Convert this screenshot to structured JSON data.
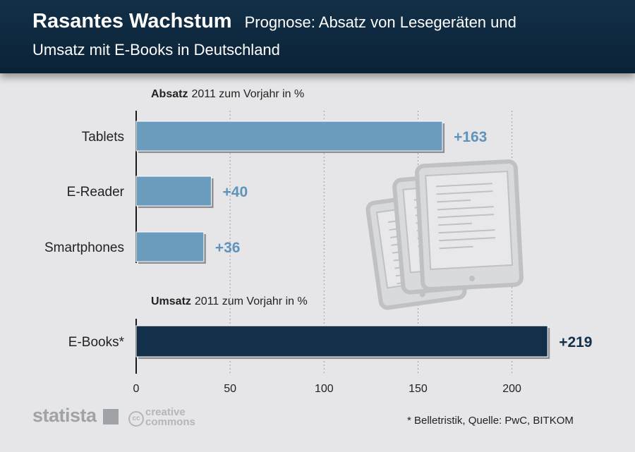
{
  "header": {
    "title": "Rasantes Wachstum",
    "subtitle_line1": "Prognose: Absatz von Lesegeräten und",
    "subtitle_line2": "Umsatz mit E-Books in Deutschland"
  },
  "footer": {
    "brand": "statista",
    "license_text": "creative commons",
    "license_badge": "cc",
    "source": "* Belletristik, Quelle: PwC, BITKOM"
  },
  "colors": {
    "absatz_bar": "#6b9bbd",
    "umsatz_bar": "#13304a",
    "absatz_label": "#5e93bd",
    "umsatz_label": "#13304a",
    "illustration": "#bfc1c4"
  },
  "illustration": {
    "icon": "tablet-ereader-illustration-icon"
  },
  "chart_data": {
    "type": "bar",
    "orientation": "horizontal",
    "xlim": [
      0,
      220
    ],
    "xticks": [
      "0",
      "50",
      "100",
      "150",
      "200"
    ],
    "grid": "vertical dotted",
    "groups": [
      {
        "heading_bold": "Absatz",
        "heading_rest": "2011 zum Vorjahr in %",
        "categories": [
          "Tablets",
          "E-Reader",
          "Smartphones"
        ],
        "values": [
          163,
          40,
          36
        ],
        "labels": [
          "+163",
          "+40",
          "+36"
        ]
      },
      {
        "heading_bold": "Umsatz",
        "heading_rest": "2011 zum Vorjahr in %",
        "categories": [
          "E-Books*"
        ],
        "values": [
          219
        ],
        "labels": [
          "+219"
        ]
      }
    ]
  }
}
